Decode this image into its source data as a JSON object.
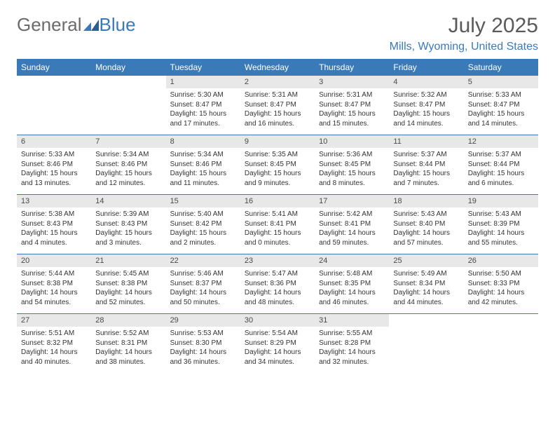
{
  "logo": {
    "part1": "General",
    "part2": "Blue"
  },
  "title": "July 2025",
  "location": "Mills, Wyoming, United States",
  "dayNames": [
    "Sunday",
    "Monday",
    "Tuesday",
    "Wednesday",
    "Thursday",
    "Friday",
    "Saturday"
  ],
  "colors": {
    "headerBg": "#3a7ab8",
    "dayNumBg": "#e8e8e8",
    "ruleColor": "#3a7ab8",
    "textGray": "#5a5a5a",
    "blue": "#3a7ab8"
  },
  "layout": {
    "columns": 7,
    "rows": 5,
    "startOffset": 2
  },
  "days": [
    {
      "n": "1",
      "sunrise": "5:30 AM",
      "sunset": "8:47 PM",
      "dl": "15 hours and 17 minutes."
    },
    {
      "n": "2",
      "sunrise": "5:31 AM",
      "sunset": "8:47 PM",
      "dl": "15 hours and 16 minutes."
    },
    {
      "n": "3",
      "sunrise": "5:31 AM",
      "sunset": "8:47 PM",
      "dl": "15 hours and 15 minutes."
    },
    {
      "n": "4",
      "sunrise": "5:32 AM",
      "sunset": "8:47 PM",
      "dl": "15 hours and 14 minutes."
    },
    {
      "n": "5",
      "sunrise": "5:33 AM",
      "sunset": "8:47 PM",
      "dl": "15 hours and 14 minutes."
    },
    {
      "n": "6",
      "sunrise": "5:33 AM",
      "sunset": "8:46 PM",
      "dl": "15 hours and 13 minutes."
    },
    {
      "n": "7",
      "sunrise": "5:34 AM",
      "sunset": "8:46 PM",
      "dl": "15 hours and 12 minutes."
    },
    {
      "n": "8",
      "sunrise": "5:34 AM",
      "sunset": "8:46 PM",
      "dl": "15 hours and 11 minutes."
    },
    {
      "n": "9",
      "sunrise": "5:35 AM",
      "sunset": "8:45 PM",
      "dl": "15 hours and 9 minutes."
    },
    {
      "n": "10",
      "sunrise": "5:36 AM",
      "sunset": "8:45 PM",
      "dl": "15 hours and 8 minutes."
    },
    {
      "n": "11",
      "sunrise": "5:37 AM",
      "sunset": "8:44 PM",
      "dl": "15 hours and 7 minutes."
    },
    {
      "n": "12",
      "sunrise": "5:37 AM",
      "sunset": "8:44 PM",
      "dl": "15 hours and 6 minutes."
    },
    {
      "n": "13",
      "sunrise": "5:38 AM",
      "sunset": "8:43 PM",
      "dl": "15 hours and 4 minutes."
    },
    {
      "n": "14",
      "sunrise": "5:39 AM",
      "sunset": "8:43 PM",
      "dl": "15 hours and 3 minutes."
    },
    {
      "n": "15",
      "sunrise": "5:40 AM",
      "sunset": "8:42 PM",
      "dl": "15 hours and 2 minutes."
    },
    {
      "n": "16",
      "sunrise": "5:41 AM",
      "sunset": "8:41 PM",
      "dl": "15 hours and 0 minutes."
    },
    {
      "n": "17",
      "sunrise": "5:42 AM",
      "sunset": "8:41 PM",
      "dl": "14 hours and 59 minutes."
    },
    {
      "n": "18",
      "sunrise": "5:43 AM",
      "sunset": "8:40 PM",
      "dl": "14 hours and 57 minutes."
    },
    {
      "n": "19",
      "sunrise": "5:43 AM",
      "sunset": "8:39 PM",
      "dl": "14 hours and 55 minutes."
    },
    {
      "n": "20",
      "sunrise": "5:44 AM",
      "sunset": "8:38 PM",
      "dl": "14 hours and 54 minutes."
    },
    {
      "n": "21",
      "sunrise": "5:45 AM",
      "sunset": "8:38 PM",
      "dl": "14 hours and 52 minutes."
    },
    {
      "n": "22",
      "sunrise": "5:46 AM",
      "sunset": "8:37 PM",
      "dl": "14 hours and 50 minutes."
    },
    {
      "n": "23",
      "sunrise": "5:47 AM",
      "sunset": "8:36 PM",
      "dl": "14 hours and 48 minutes."
    },
    {
      "n": "24",
      "sunrise": "5:48 AM",
      "sunset": "8:35 PM",
      "dl": "14 hours and 46 minutes."
    },
    {
      "n": "25",
      "sunrise": "5:49 AM",
      "sunset": "8:34 PM",
      "dl": "14 hours and 44 minutes."
    },
    {
      "n": "26",
      "sunrise": "5:50 AM",
      "sunset": "8:33 PM",
      "dl": "14 hours and 42 minutes."
    },
    {
      "n": "27",
      "sunrise": "5:51 AM",
      "sunset": "8:32 PM",
      "dl": "14 hours and 40 minutes."
    },
    {
      "n": "28",
      "sunrise": "5:52 AM",
      "sunset": "8:31 PM",
      "dl": "14 hours and 38 minutes."
    },
    {
      "n": "29",
      "sunrise": "5:53 AM",
      "sunset": "8:30 PM",
      "dl": "14 hours and 36 minutes."
    },
    {
      "n": "30",
      "sunrise": "5:54 AM",
      "sunset": "8:29 PM",
      "dl": "14 hours and 34 minutes."
    },
    {
      "n": "31",
      "sunrise": "5:55 AM",
      "sunset": "8:28 PM",
      "dl": "14 hours and 32 minutes."
    }
  ],
  "labels": {
    "sunrise": "Sunrise:",
    "sunset": "Sunset:",
    "daylight": "Daylight:"
  }
}
